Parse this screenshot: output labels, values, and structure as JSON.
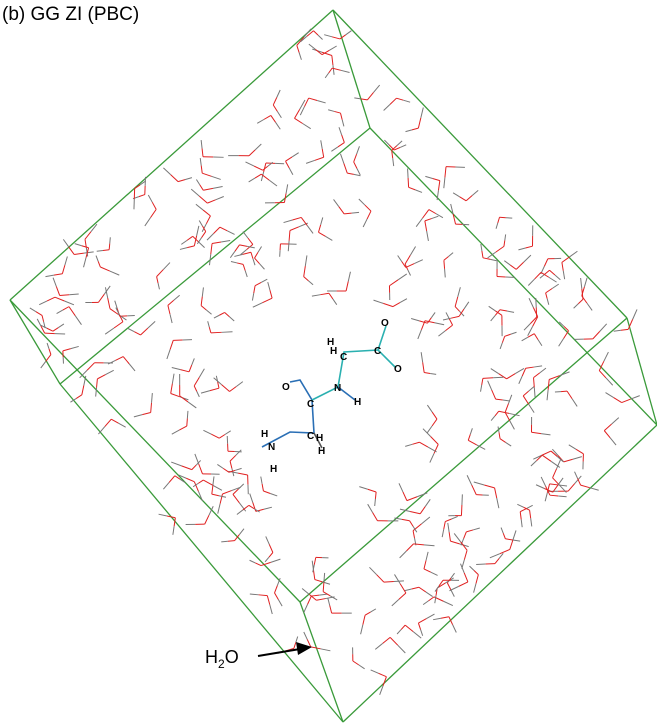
{
  "title": "(b) GG ZI (PBC)",
  "water_label": {
    "main": "H",
    "sub": "2",
    "end": "O"
  },
  "atom_labels": [
    "O",
    "H",
    "H",
    "C",
    "C",
    "O",
    "N",
    "H",
    "O",
    "C",
    "H",
    "N",
    "H",
    "C",
    "H",
    "H"
  ]
}
